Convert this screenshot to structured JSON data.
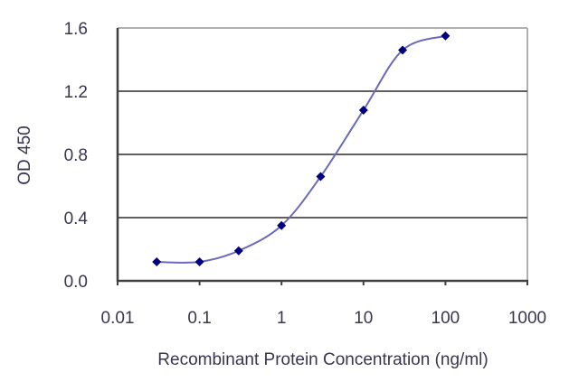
{
  "chart_data": {
    "type": "line",
    "title": "",
    "xlabel": "Recombinant Protein Concentration (ng/ml)",
    "ylabel": "OD 450",
    "x_scale": "log",
    "xlim": [
      0.01,
      1000
    ],
    "ylim": [
      0.0,
      1.6
    ],
    "x_ticks": [
      "0.01",
      "0.1",
      "1",
      "10",
      "100",
      "1000"
    ],
    "y_ticks": [
      "0.0",
      "0.4",
      "0.8",
      "1.2",
      "1.6"
    ],
    "grid": "horizontal",
    "legend": null,
    "series": [
      {
        "name": "OD 450",
        "marker": "diamond",
        "color": "#000080",
        "line_color": "#6a6ab8",
        "x": [
          0.03,
          0.1,
          0.3,
          1,
          3,
          10,
          30,
          100
        ],
        "values": [
          0.12,
          0.12,
          0.19,
          0.35,
          0.66,
          1.08,
          1.46,
          1.55
        ]
      }
    ]
  },
  "colors": {
    "frame": "#404040",
    "grid": "#606060",
    "marker": "#000080",
    "curve": "#6a6ab8",
    "text": "#3a3550"
  }
}
